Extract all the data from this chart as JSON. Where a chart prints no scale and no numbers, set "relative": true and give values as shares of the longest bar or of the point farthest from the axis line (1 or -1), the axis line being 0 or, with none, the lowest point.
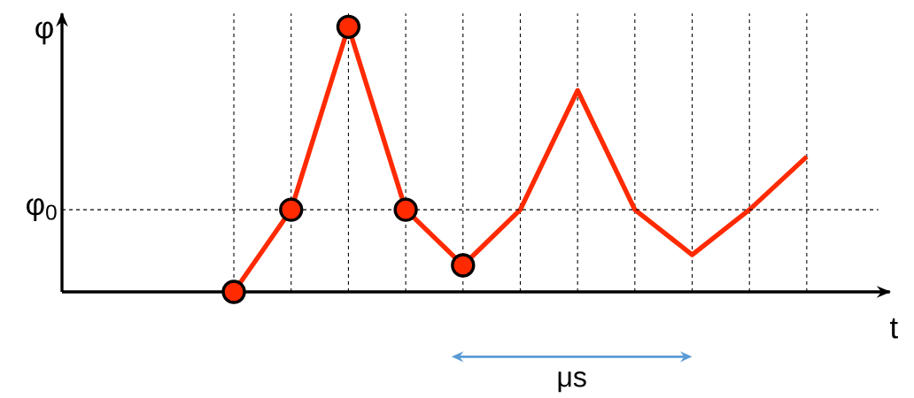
{
  "chart_data": {
    "type": "line",
    "relative": true,
    "xlabel": "t",
    "ylabel": "φ",
    "grid": "x",
    "categories": [
      null,
      null,
      null,
      null,
      null,
      null,
      null,
      null,
      null,
      null,
      null
    ],
    "series": [
      {
        "type": "line",
        "color": "#ff2a00",
        "line_style": "solid",
        "marker": "circle",
        "values": [
          0,
          0.31,
          1,
          0.31,
          0.1,
          null,
          null,
          null,
          null,
          null,
          null
        ]
      },
      {
        "type": "line",
        "color": "#ff2a00",
        "line_style": "solid",
        "values": [
          null,
          null,
          null,
          null,
          0.1,
          0.31,
          0.76,
          0.31,
          0.14,
          0.31,
          0.51
        ]
      }
    ],
    "ref_lines": [
      {
        "axis": "y",
        "value": 0.31,
        "label": "φ$_{0}$",
        "line_style": "dashed",
        "color": "#000000"
      }
    ],
    "annotations": [
      "μs"
    ]
  }
}
